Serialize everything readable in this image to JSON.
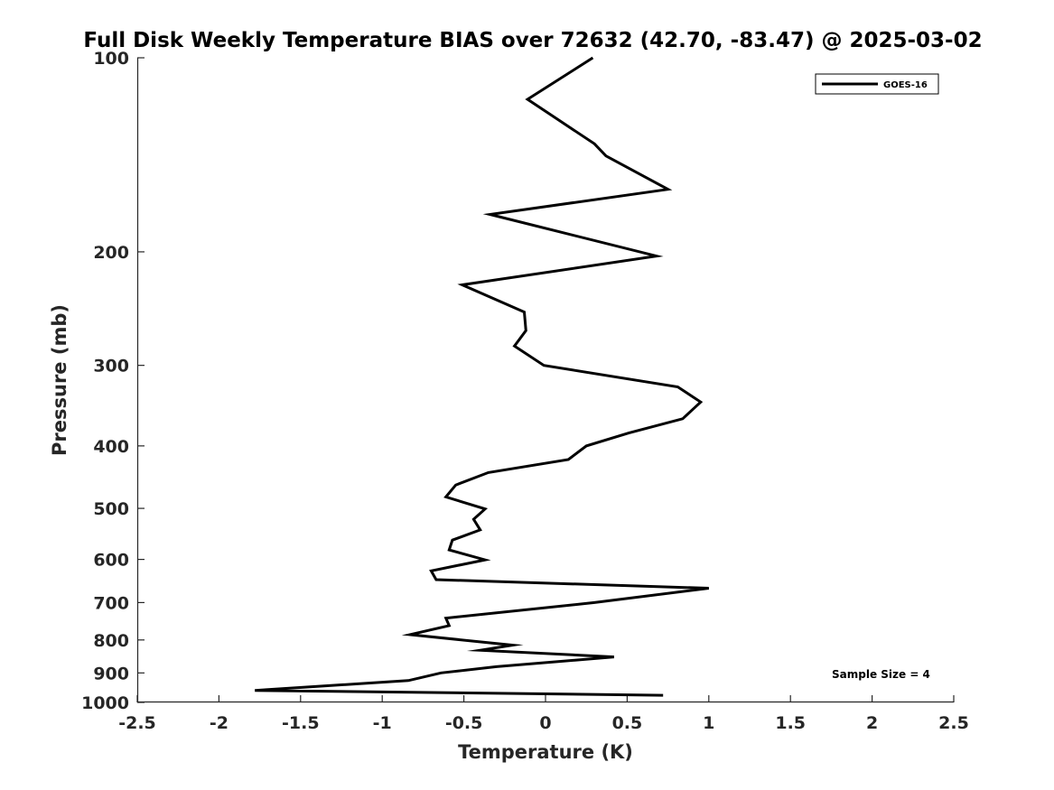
{
  "chart_data": {
    "type": "line",
    "title": "Full Disk Weekly Temperature BIAS over 72632 (42.70, -83.47) @ 2025-03-02",
    "xlabel": "Temperature (K)",
    "ylabel": "Pressure (mb)",
    "xlim": [
      -2.5,
      2.5
    ],
    "ylim": [
      1000,
      100
    ],
    "yscale": "log",
    "y_reversed": true,
    "grid": false,
    "xticks": [
      -2.5,
      -2,
      -1.5,
      -1,
      -0.5,
      0,
      0.5,
      1,
      1.5,
      2,
      2.5
    ],
    "xtick_labels": [
      "-2.5",
      "-2",
      "-1.5",
      "-1",
      "-0.5",
      "0",
      "0.5",
      "1",
      "1.5",
      "2",
      "2.5"
    ],
    "yticks": [
      100,
      200,
      300,
      400,
      500,
      600,
      700,
      800,
      900,
      1000
    ],
    "ytick_labels": [
      "100",
      "200",
      "300",
      "400",
      "500",
      "600",
      "700",
      "800",
      "900",
      "1000"
    ],
    "legend": {
      "placement": "top-right",
      "entries": [
        "GOES-16"
      ]
    },
    "annotation": "Sample Size = 4",
    "series": [
      {
        "name": "GOES-16",
        "color": "#000000",
        "points": [
          {
            "t": 0.29,
            "p": 100
          },
          {
            "t": -0.11,
            "p": 116
          },
          {
            "t": 0.3,
            "p": 136
          },
          {
            "t": 0.37,
            "p": 142
          },
          {
            "t": 0.75,
            "p": 160
          },
          {
            "t": -0.34,
            "p": 175
          },
          {
            "t": 0.68,
            "p": 203
          },
          {
            "t": -0.51,
            "p": 225
          },
          {
            "t": -0.13,
            "p": 248
          },
          {
            "t": -0.12,
            "p": 265
          },
          {
            "t": -0.19,
            "p": 280
          },
          {
            "t": -0.01,
            "p": 300
          },
          {
            "t": 0.81,
            "p": 324
          },
          {
            "t": 0.95,
            "p": 342
          },
          {
            "t": 0.84,
            "p": 363
          },
          {
            "t": 0.51,
            "p": 382
          },
          {
            "t": 0.25,
            "p": 400
          },
          {
            "t": 0.14,
            "p": 420
          },
          {
            "t": -0.35,
            "p": 440
          },
          {
            "t": -0.55,
            "p": 460
          },
          {
            "t": -0.61,
            "p": 480
          },
          {
            "t": -0.37,
            "p": 501
          },
          {
            "t": -0.44,
            "p": 520
          },
          {
            "t": -0.4,
            "p": 540
          },
          {
            "t": -0.57,
            "p": 560
          },
          {
            "t": -0.59,
            "p": 580
          },
          {
            "t": -0.37,
            "p": 601
          },
          {
            "t": -0.7,
            "p": 625
          },
          {
            "t": -0.67,
            "p": 645
          },
          {
            "t": 1.0,
            "p": 665
          },
          {
            "t": 0.3,
            "p": 700
          },
          {
            "t": -0.61,
            "p": 740
          },
          {
            "t": -0.59,
            "p": 760
          },
          {
            "t": -0.83,
            "p": 785
          },
          {
            "t": -0.2,
            "p": 815
          },
          {
            "t": -0.4,
            "p": 830
          },
          {
            "t": 0.42,
            "p": 850
          },
          {
            "t": -0.3,
            "p": 880
          },
          {
            "t": -0.64,
            "p": 900
          },
          {
            "t": -0.84,
            "p": 925
          },
          {
            "t": -1.78,
            "p": 958
          },
          {
            "t": 0.72,
            "p": 975
          }
        ]
      }
    ]
  }
}
